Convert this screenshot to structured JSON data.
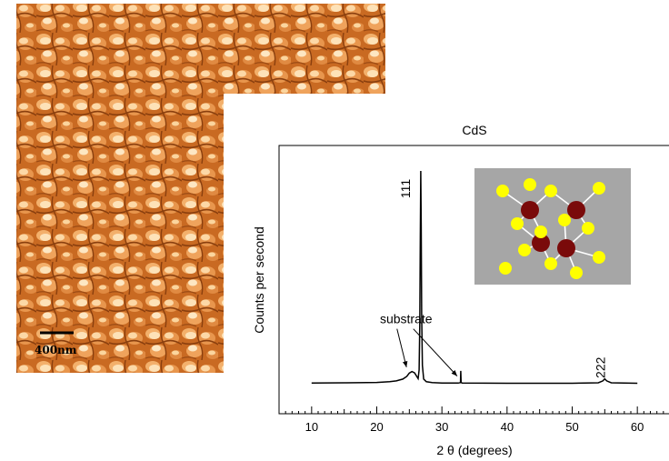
{
  "afm": {
    "scale_bar_label": "400nm"
  },
  "chart_data": {
    "type": "line",
    "title": "CdS",
    "xlabel": "2 θ (degrees)",
    "ylabel": "Counts per second",
    "xlim": [
      5,
      65
    ],
    "xticks": [
      10,
      20,
      30,
      40,
      50,
      60
    ],
    "ylim": [
      0,
      100
    ],
    "grid": false,
    "series": [
      {
        "color": "#000000",
        "points": [
          [
            10,
            4.0
          ],
          [
            15,
            4.1
          ],
          [
            20,
            4.3
          ],
          [
            22,
            4.6
          ],
          [
            23,
            5.0
          ],
          [
            24,
            5.8
          ],
          [
            24.6,
            7.0
          ],
          [
            25.0,
            8.5
          ],
          [
            25.4,
            9.2
          ],
          [
            25.8,
            8.6
          ],
          [
            26.1,
            7.2
          ],
          [
            26.35,
            6.0
          ],
          [
            26.5,
            10
          ],
          [
            26.6,
            30
          ],
          [
            26.68,
            70
          ],
          [
            26.75,
            100
          ],
          [
            26.82,
            75
          ],
          [
            26.9,
            35
          ],
          [
            27.0,
            12
          ],
          [
            27.2,
            5.8
          ],
          [
            27.6,
            4.6
          ],
          [
            28.5,
            4.2
          ],
          [
            30,
            4.0
          ],
          [
            32.5,
            4.0
          ],
          [
            32.85,
            4.2
          ],
          [
            32.9,
            9.5
          ],
          [
            32.95,
            4.3
          ],
          [
            33.1,
            4.0
          ],
          [
            40,
            3.9
          ],
          [
            50,
            3.9
          ],
          [
            54,
            4.1
          ],
          [
            54.7,
            5.0
          ],
          [
            55.0,
            5.9
          ],
          [
            55.3,
            5.0
          ],
          [
            56,
            4.1
          ],
          [
            60,
            3.9
          ]
        ]
      }
    ],
    "annotations": [
      {
        "text": "111",
        "x": 25.1,
        "y": 92,
        "rotated": true
      },
      {
        "text": "222",
        "x": 55.0,
        "y": 11,
        "rotated": true
      },
      {
        "text": "substrate",
        "x": 24.5,
        "y": 31,
        "arrows_to_x": [
          25.4,
          32.9
        ]
      }
    ],
    "inset": "CdS crystal structure: yellow sulfur atoms and dark red cadmium atoms on grey background"
  }
}
